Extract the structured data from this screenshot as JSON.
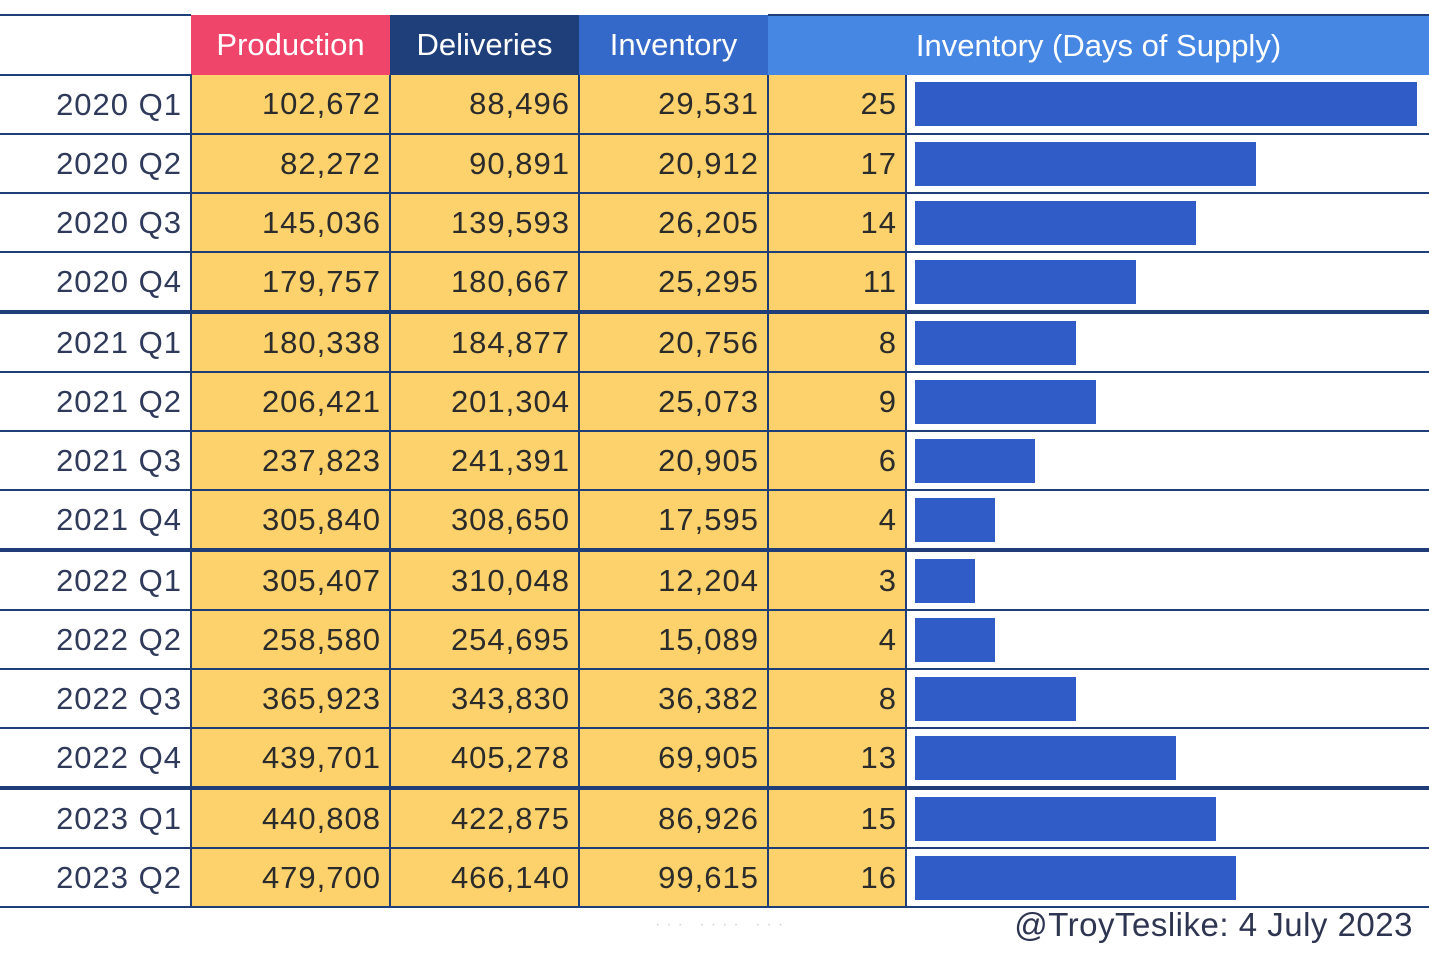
{
  "chart_data": {
    "type": "table",
    "title": "",
    "columns": [
      "",
      "Production",
      "Deliveries",
      "Inventory",
      "Inventory (Days of Supply)"
    ],
    "header_colors": {
      "production": "#f0456a",
      "deliveries": "#1e3f7a",
      "inventory": "#3569c9",
      "days_of_supply": "#4787e4"
    },
    "cell_color": "#fdd26c",
    "bar_color": "#2f5cc7",
    "bar_max_days": 25,
    "rows": [
      {
        "quarter": "2020 Q1",
        "production": "102,672",
        "deliveries": "88,496",
        "inventory": "29,531",
        "days": "25"
      },
      {
        "quarter": "2020 Q2",
        "production": "82,272",
        "deliveries": "90,891",
        "inventory": "20,912",
        "days": "17"
      },
      {
        "quarter": "2020 Q3",
        "production": "145,036",
        "deliveries": "139,593",
        "inventory": "26,205",
        "days": "14"
      },
      {
        "quarter": "2020 Q4",
        "production": "179,757",
        "deliveries": "180,667",
        "inventory": "25,295",
        "days": "11"
      },
      {
        "quarter": "2021 Q1",
        "production": "180,338",
        "deliveries": "184,877",
        "inventory": "20,756",
        "days": "8"
      },
      {
        "quarter": "2021 Q2",
        "production": "206,421",
        "deliveries": "201,304",
        "inventory": "25,073",
        "days": "9"
      },
      {
        "quarter": "2021 Q3",
        "production": "237,823",
        "deliveries": "241,391",
        "inventory": "20,905",
        "days": "6"
      },
      {
        "quarter": "2021 Q4",
        "production": "305,840",
        "deliveries": "308,650",
        "inventory": "17,595",
        "days": "4"
      },
      {
        "quarter": "2022 Q1",
        "production": "305,407",
        "deliveries": "310,048",
        "inventory": "12,204",
        "days": "3"
      },
      {
        "quarter": "2022 Q2",
        "production": "258,580",
        "deliveries": "254,695",
        "inventory": "15,089",
        "days": "4"
      },
      {
        "quarter": "2022 Q3",
        "production": "365,923",
        "deliveries": "343,830",
        "inventory": "36,382",
        "days": "8"
      },
      {
        "quarter": "2022 Q4",
        "production": "439,701",
        "deliveries": "405,278",
        "inventory": "69,905",
        "days": "13"
      },
      {
        "quarter": "2023 Q1",
        "production": "440,808",
        "deliveries": "422,875",
        "inventory": "86,926",
        "days": "15"
      },
      {
        "quarter": "2023 Q2",
        "production": "479,700",
        "deliveries": "466,140",
        "inventory": "99,615",
        "days": "16"
      }
    ]
  },
  "footer": {
    "credit": "@TroyTeslike: 4 July 2023",
    "faint_watermark": "··· ···· ···"
  }
}
